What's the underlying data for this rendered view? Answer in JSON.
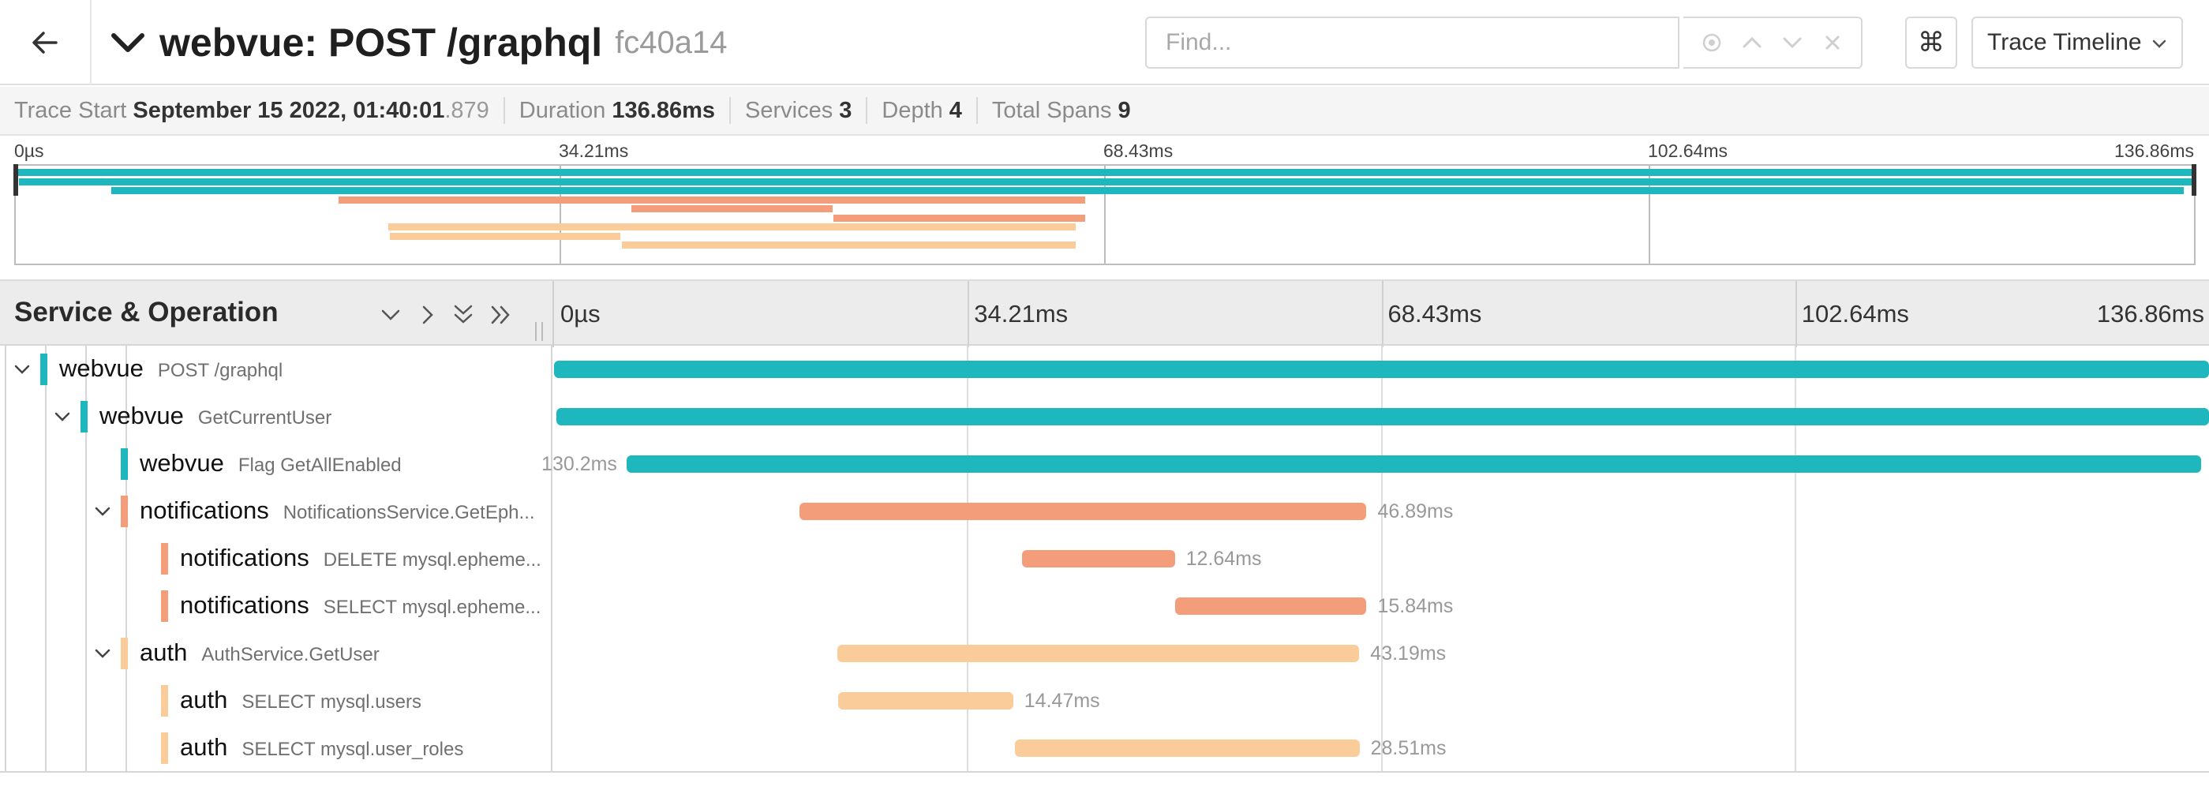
{
  "header": {
    "title": "webvue: POST /graphql",
    "trace_id": "fc40a14",
    "find_placeholder": "Find...",
    "keyboard_shortcut_glyph": "⌘",
    "view_selector_label": "Trace Timeline",
    "icons": [
      "back-arrow-icon",
      "chevron-down-icon",
      "locate-icon",
      "chevron-up-icon",
      "chevron-down-icon",
      "close-icon",
      "command-icon"
    ]
  },
  "summary": {
    "trace_start_label": "Trace Start",
    "trace_start_date": "September 15 2022, 01:40:01",
    "trace_start_ms": ".879",
    "duration_label": "Duration",
    "duration_value": "136.86ms",
    "services_label": "Services",
    "services_value": "3",
    "depth_label": "Depth",
    "depth_value": "4",
    "total_spans_label": "Total Spans",
    "total_spans_value": "9"
  },
  "timeline": {
    "total_ms": 136.86,
    "ticks": [
      "0µs",
      "34.21ms",
      "68.43ms",
      "102.64ms",
      "136.86ms"
    ],
    "column_title": "Service & Operation",
    "colors": {
      "webvue": "#1eb7be",
      "notifications": "#f49d7a",
      "auth": "#f9cc9a"
    }
  },
  "spans": [
    {
      "service": "webvue",
      "operation": "POST /graphql",
      "depth": 0,
      "expandable": true,
      "start_ms": 0,
      "duration_ms": 136.86,
      "duration_label": "",
      "label_side": "none"
    },
    {
      "service": "webvue",
      "operation": "GetCurrentUser",
      "depth": 1,
      "expandable": true,
      "start_ms": 0.2,
      "duration_ms": 136.66,
      "duration_label": "",
      "label_side": "none"
    },
    {
      "service": "webvue",
      "operation": "Flag GetAllEnabled",
      "depth": 2,
      "expandable": false,
      "start_ms": 6.0,
      "duration_ms": 130.2,
      "duration_label": "130.2ms",
      "label_side": "left"
    },
    {
      "service": "notifications",
      "operation": "NotificationsService.GetEph...",
      "depth": 2,
      "expandable": true,
      "start_ms": 20.3,
      "duration_ms": 46.89,
      "duration_label": "46.89ms",
      "label_side": "right"
    },
    {
      "service": "notifications",
      "operation": "DELETE mysql.epheme...",
      "depth": 3,
      "expandable": false,
      "start_ms": 38.7,
      "duration_ms": 12.64,
      "duration_label": "12.64ms",
      "label_side": "right"
    },
    {
      "service": "notifications",
      "operation": "SELECT mysql.epheme...",
      "depth": 3,
      "expandable": false,
      "start_ms": 51.35,
      "duration_ms": 15.84,
      "duration_label": "15.84ms",
      "label_side": "right"
    },
    {
      "service": "auth",
      "operation": "AuthService.GetUser",
      "depth": 2,
      "expandable": true,
      "start_ms": 23.4,
      "duration_ms": 43.19,
      "duration_label": "43.19ms",
      "label_side": "right"
    },
    {
      "service": "auth",
      "operation": "SELECT mysql.users",
      "depth": 3,
      "expandable": false,
      "start_ms": 23.5,
      "duration_ms": 14.47,
      "duration_label": "14.47ms",
      "label_side": "right"
    },
    {
      "service": "auth",
      "operation": "SELECT mysql.user_roles",
      "depth": 3,
      "expandable": false,
      "start_ms": 38.1,
      "duration_ms": 28.51,
      "duration_label": "28.51ms",
      "label_side": "right"
    }
  ]
}
